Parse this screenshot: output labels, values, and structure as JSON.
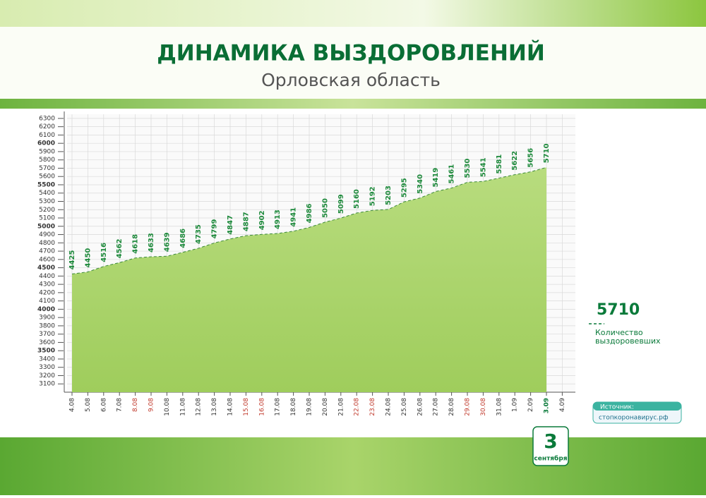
{
  "chart_data": {
    "type": "area",
    "title": "ДИНАМИКА ВЫЗДОРОВЛЕНИЙ",
    "subtitle": "Орловская область",
    "categories": [
      "4.08",
      "5.08",
      "6.08",
      "7.08",
      "8.08",
      "9.08",
      "10.08",
      "11.08",
      "12.08",
      "13.08",
      "14.08",
      "15.08",
      "16.08",
      "17.08",
      "18.08",
      "19.08",
      "20.08",
      "21.08",
      "22.08",
      "23.08",
      "24.08",
      "25.08",
      "26.08",
      "27.08",
      "28.08",
      "29.08",
      "30.08",
      "31.08",
      "1.09",
      "2.09",
      "3.09",
      "4.09"
    ],
    "category_colors": [
      "#333",
      "#333",
      "#333",
      "#333",
      "#c0392b",
      "#c0392b",
      "#333",
      "#333",
      "#333",
      "#333",
      "#333",
      "#c0392b",
      "#c0392b",
      "#333",
      "#333",
      "#333",
      "#333",
      "#333",
      "#c0392b",
      "#c0392b",
      "#333",
      "#333",
      "#333",
      "#333",
      "#333",
      "#c0392b",
      "#c0392b",
      "#333",
      "#333",
      "#333",
      "#0a7a3a",
      "#333"
    ],
    "series": [
      {
        "name": "Количество выздоровевших",
        "color": "#a9d46a",
        "values": [
          4425,
          4450,
          4516,
          4562,
          4618,
          4633,
          4639,
          4686,
          4735,
          4799,
          4847,
          4887,
          4902,
          4913,
          4941,
          4986,
          5050,
          5099,
          5160,
          5192,
          5203,
          5295,
          5340,
          5419,
          5461,
          5530,
          5541,
          5581,
          5622,
          5656,
          5710,
          null
        ]
      }
    ],
    "legend_value": 5710,
    "ylim": [
      3000,
      6350
    ],
    "yticks": [
      3100,
      3200,
      3300,
      3400,
      3500,
      3600,
      3700,
      3800,
      3900,
      4000,
      4100,
      4200,
      4300,
      4400,
      4500,
      4600,
      4700,
      4800,
      4900,
      5000,
      5100,
      5200,
      5300,
      5400,
      5500,
      5600,
      5700,
      5800,
      5900,
      6000,
      6100,
      6200,
      6300
    ],
    "major_tick_step": 500,
    "grid": true,
    "source_label": "Источник:",
    "source": "стопкоронавирус.рф",
    "date_day": "3",
    "date_month": "сентября"
  }
}
